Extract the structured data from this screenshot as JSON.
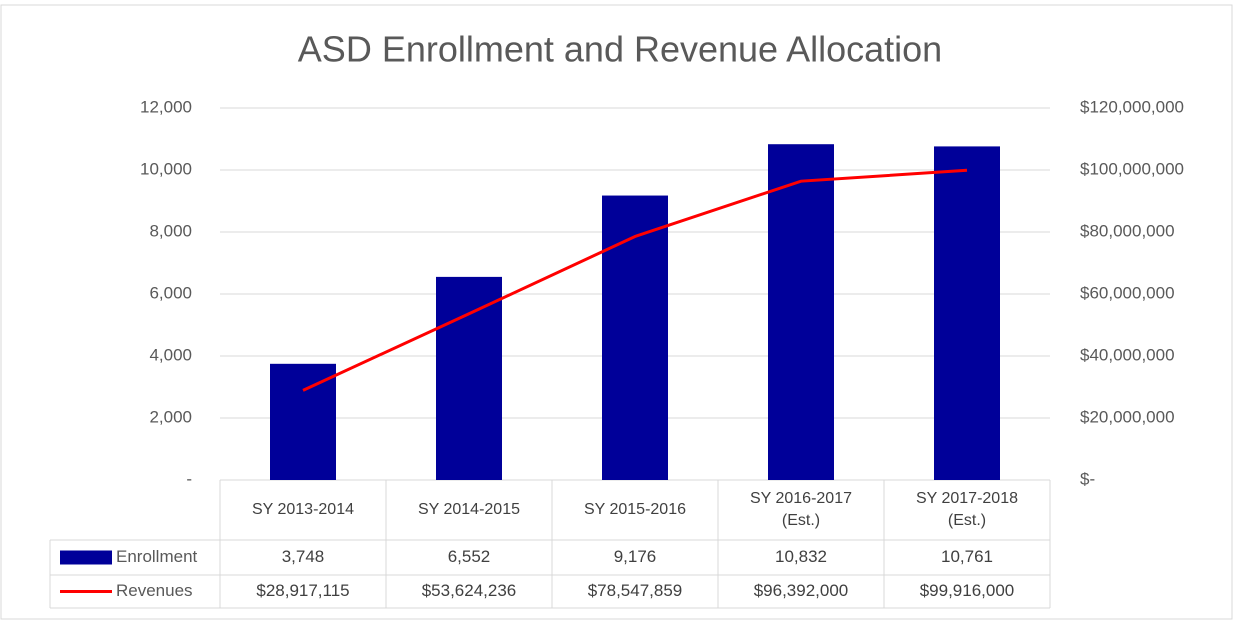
{
  "chart_data": {
    "type": "bar_line_table",
    "title": "ASD Enrollment and Revenue Allocation",
    "categories": [
      "SY 2013-2014",
      "SY 2014-2015",
      "SY 2015-2016",
      "SY 2016-2017 (Est.)",
      "SY 2017-2018 (Est.)"
    ],
    "series": [
      {
        "name": "Enrollment",
        "type": "bar",
        "color": "#000099",
        "values": [
          3748,
          6552,
          9176,
          10832,
          10761
        ],
        "value_labels": [
          "3,748",
          "6,552",
          "9,176",
          "10,832",
          "10,761"
        ]
      },
      {
        "name": "Revenues",
        "type": "line",
        "axis": "y2",
        "color": "#ff0000",
        "values": [
          28917115,
          53624236,
          78547859,
          96392000,
          99916000
        ],
        "value_labels": [
          "$28,917,115",
          "$53,624,236",
          "$78,547,859",
          "$96,392,000",
          "$99,916,000"
        ]
      }
    ],
    "ylim": [
      0,
      12000
    ],
    "yticks": [
      {
        "value": 0,
        "label": "-"
      },
      {
        "value": 2000,
        "label": "2,000"
      },
      {
        "value": 4000,
        "label": "4,000"
      },
      {
        "value": 6000,
        "label": "6,000"
      },
      {
        "value": 8000,
        "label": "8,000"
      },
      {
        "value": 10000,
        "label": "10,000"
      },
      {
        "value": 12000,
        "label": "12,000"
      }
    ],
    "y2lim": [
      0,
      120000000
    ],
    "y2ticks": [
      {
        "value": 0,
        "label": "$-"
      },
      {
        "value": 20000000,
        "label": "$20,000,000"
      },
      {
        "value": 40000000,
        "label": "$40,000,000"
      },
      {
        "value": 60000000,
        "label": "$60,000,000"
      },
      {
        "value": 80000000,
        "label": "$80,000,000"
      },
      {
        "value": 100000000,
        "label": "$100,000,000"
      },
      {
        "value": 120000000,
        "label": "$120,000,000"
      }
    ],
    "grid": true
  }
}
